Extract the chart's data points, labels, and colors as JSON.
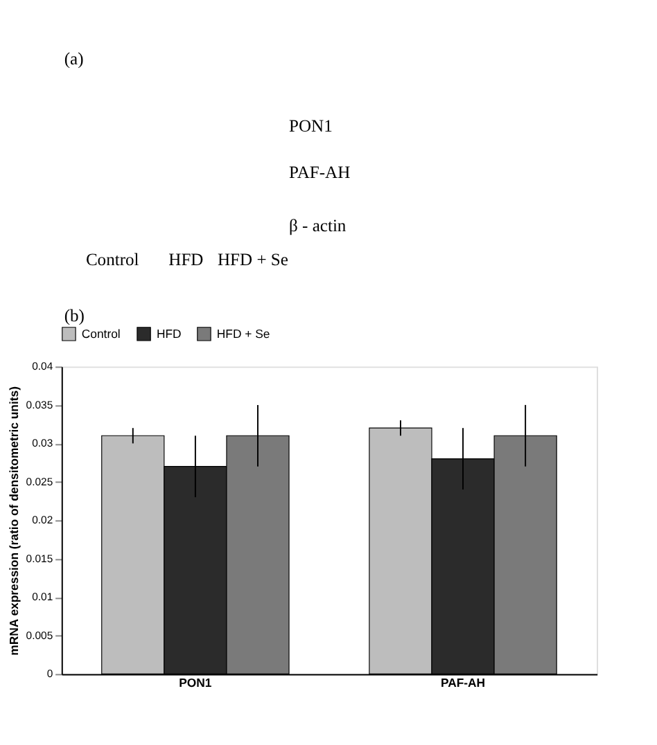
{
  "chart_data": [
    {
      "type": "other",
      "annotations": [
        "(a)",
        "PON1",
        "PAF-AH",
        "β - actin",
        "Control",
        "HFD",
        "HFD + Se",
        "(b)"
      ]
    },
    {
      "type": "bar",
      "categories": [
        "PON1",
        "PAF-AH"
      ],
      "ylabel": "mRNA expression (ratio of densitometric units)",
      "ylim": [
        0,
        0.04
      ],
      "yticks": [
        0,
        0.005,
        0.01,
        0.015,
        0.02,
        0.025,
        0.03,
        0.035,
        0.04
      ],
      "legend": "top",
      "series": [
        {
          "name": "Control",
          "color": "#bdbdbd",
          "values": [
            0.031,
            0.032
          ],
          "errors": [
            0.001,
            0.001
          ]
        },
        {
          "name": "HFD",
          "color": "#2b2b2b",
          "values": [
            0.027,
            0.028
          ],
          "errors": [
            0.004,
            0.004
          ]
        },
        {
          "name": "HFD + Se",
          "color": "#7a7a7a",
          "values": [
            0.031,
            0.031
          ],
          "errors": [
            0.004,
            0.004
          ]
        }
      ]
    }
  ]
}
